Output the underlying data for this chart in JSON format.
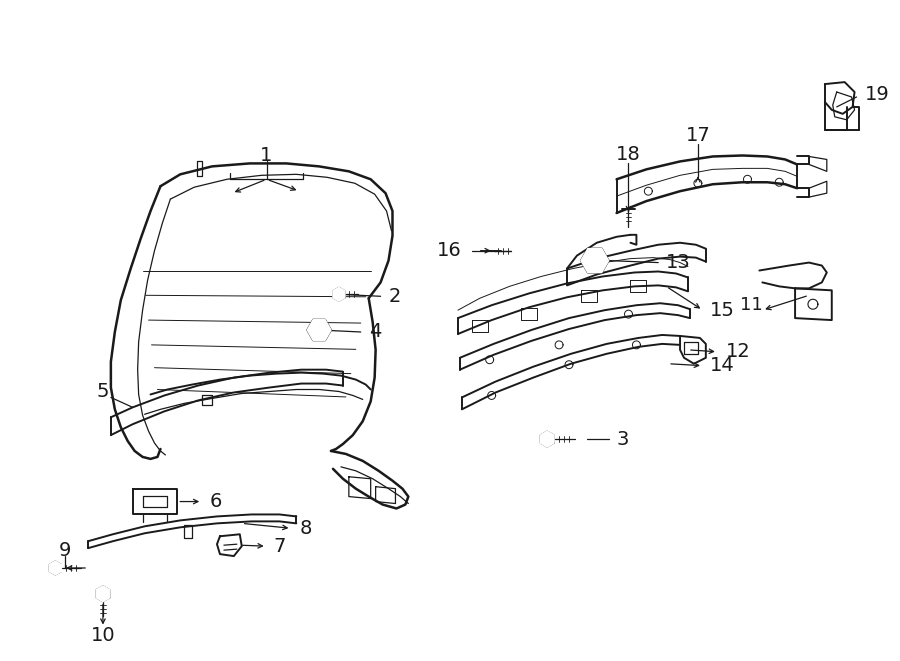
{
  "bg_color": "#ffffff",
  "line_color": "#1a1a1a",
  "fig_width": 9.0,
  "fig_height": 6.61,
  "dpi": 100
}
